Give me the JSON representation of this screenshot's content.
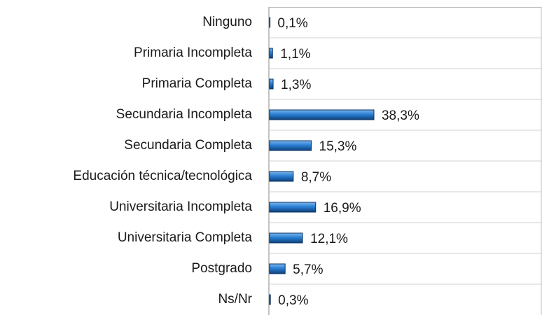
{
  "chart_data": {
    "type": "barh",
    "categories": [
      "Ninguno",
      "Primaria Incompleta",
      "Primaria Completa",
      "Secundaria Incompleta",
      "Secundaria Completa",
      "Educación técnica/tecnológica",
      "Universitaria Incompleta",
      "Universitaria Completa",
      "Postgrado",
      "Ns/Nr"
    ],
    "values": [
      0.1,
      1.1,
      1.3,
      38.3,
      15.3,
      8.7,
      16.9,
      12.1,
      5.7,
      0.3
    ],
    "value_labels": [
      "0,1%",
      "1,1%",
      "1,3%",
      "38,3%",
      "15,3%",
      "8,7%",
      "16,9%",
      "12,1%",
      "5,7%",
      "0,3%"
    ],
    "color": "#1f74c8",
    "xlim": [
      0,
      100
    ]
  }
}
